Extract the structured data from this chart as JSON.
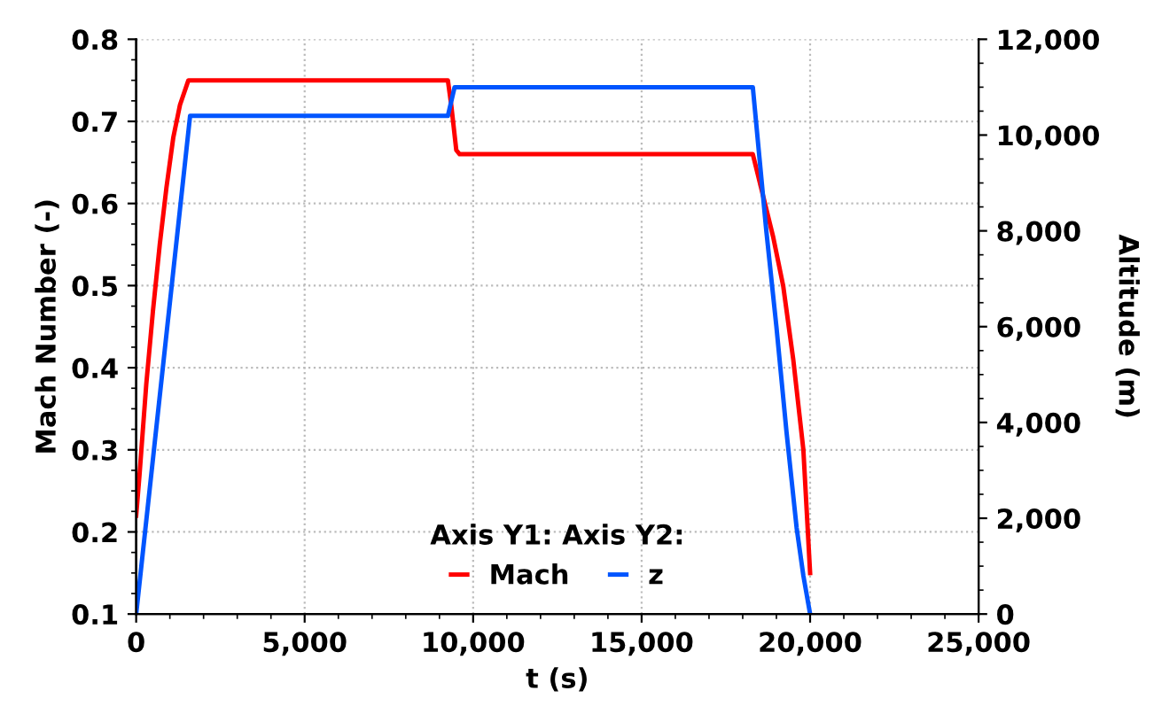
{
  "chart_data": {
    "type": "line",
    "xlabel": "t (s)",
    "ylabel": "Mach Number (-)",
    "y2label": "Altitude (m)",
    "legend_title": "Axis Y1: Axis Y2:",
    "xlim": [
      0,
      25000
    ],
    "xticks": [
      {
        "value": 0,
        "label": "0"
      },
      {
        "value": 5000,
        "label": "5,000"
      },
      {
        "value": 10000,
        "label": "10,000"
      },
      {
        "value": 15000,
        "label": "15,000"
      },
      {
        "value": 20000,
        "label": "20,000"
      },
      {
        "value": 25000,
        "label": "25,000"
      }
    ],
    "ylim": [
      0.1,
      0.8
    ],
    "yticks": [
      0.1,
      0.2,
      0.3,
      0.4,
      0.5,
      0.6,
      0.7,
      0.8
    ],
    "y2lim": [
      0,
      12000
    ],
    "y2ticks": [
      {
        "value": 0,
        "label": "0"
      },
      {
        "value": 2000,
        "label": "2,000"
      },
      {
        "value": 4000,
        "label": "4,000"
      },
      {
        "value": 6000,
        "label": "6,000"
      },
      {
        "value": 8000,
        "label": "8,000"
      },
      {
        "value": 10000,
        "label": "10,000"
      },
      {
        "value": 12000,
        "label": "12,000"
      }
    ],
    "grid": true,
    "legend": "bottom",
    "line_style": "solid",
    "marker": "none",
    "series": [
      {
        "name": "Mach",
        "color": "#ff0000",
        "x": [
          0,
          100,
          300,
          500,
          700,
          900,
          1100,
          1300,
          1550,
          9250,
          9350,
          9500,
          9600,
          18300,
          18600,
          18900,
          19200,
          19500,
          19800,
          20000
        ],
        "values": [
          0.22,
          0.27,
          0.38,
          0.47,
          0.55,
          0.62,
          0.68,
          0.72,
          0.75,
          0.75,
          0.72,
          0.665,
          0.66,
          0.66,
          0.61,
          0.56,
          0.5,
          0.41,
          0.3,
          0.15
        ]
      },
      {
        "name": "z",
        "color": "#0055ff",
        "axis": "y2",
        "x": [
          0,
          1600,
          9250,
          9450,
          18300,
          18500,
          18700,
          19000,
          19300,
          19600,
          19800,
          20000
        ],
        "values": [
          0,
          10400,
          10400,
          11000,
          11000,
          9500,
          8000,
          6000,
          3800,
          1800,
          800,
          0
        ]
      }
    ]
  }
}
